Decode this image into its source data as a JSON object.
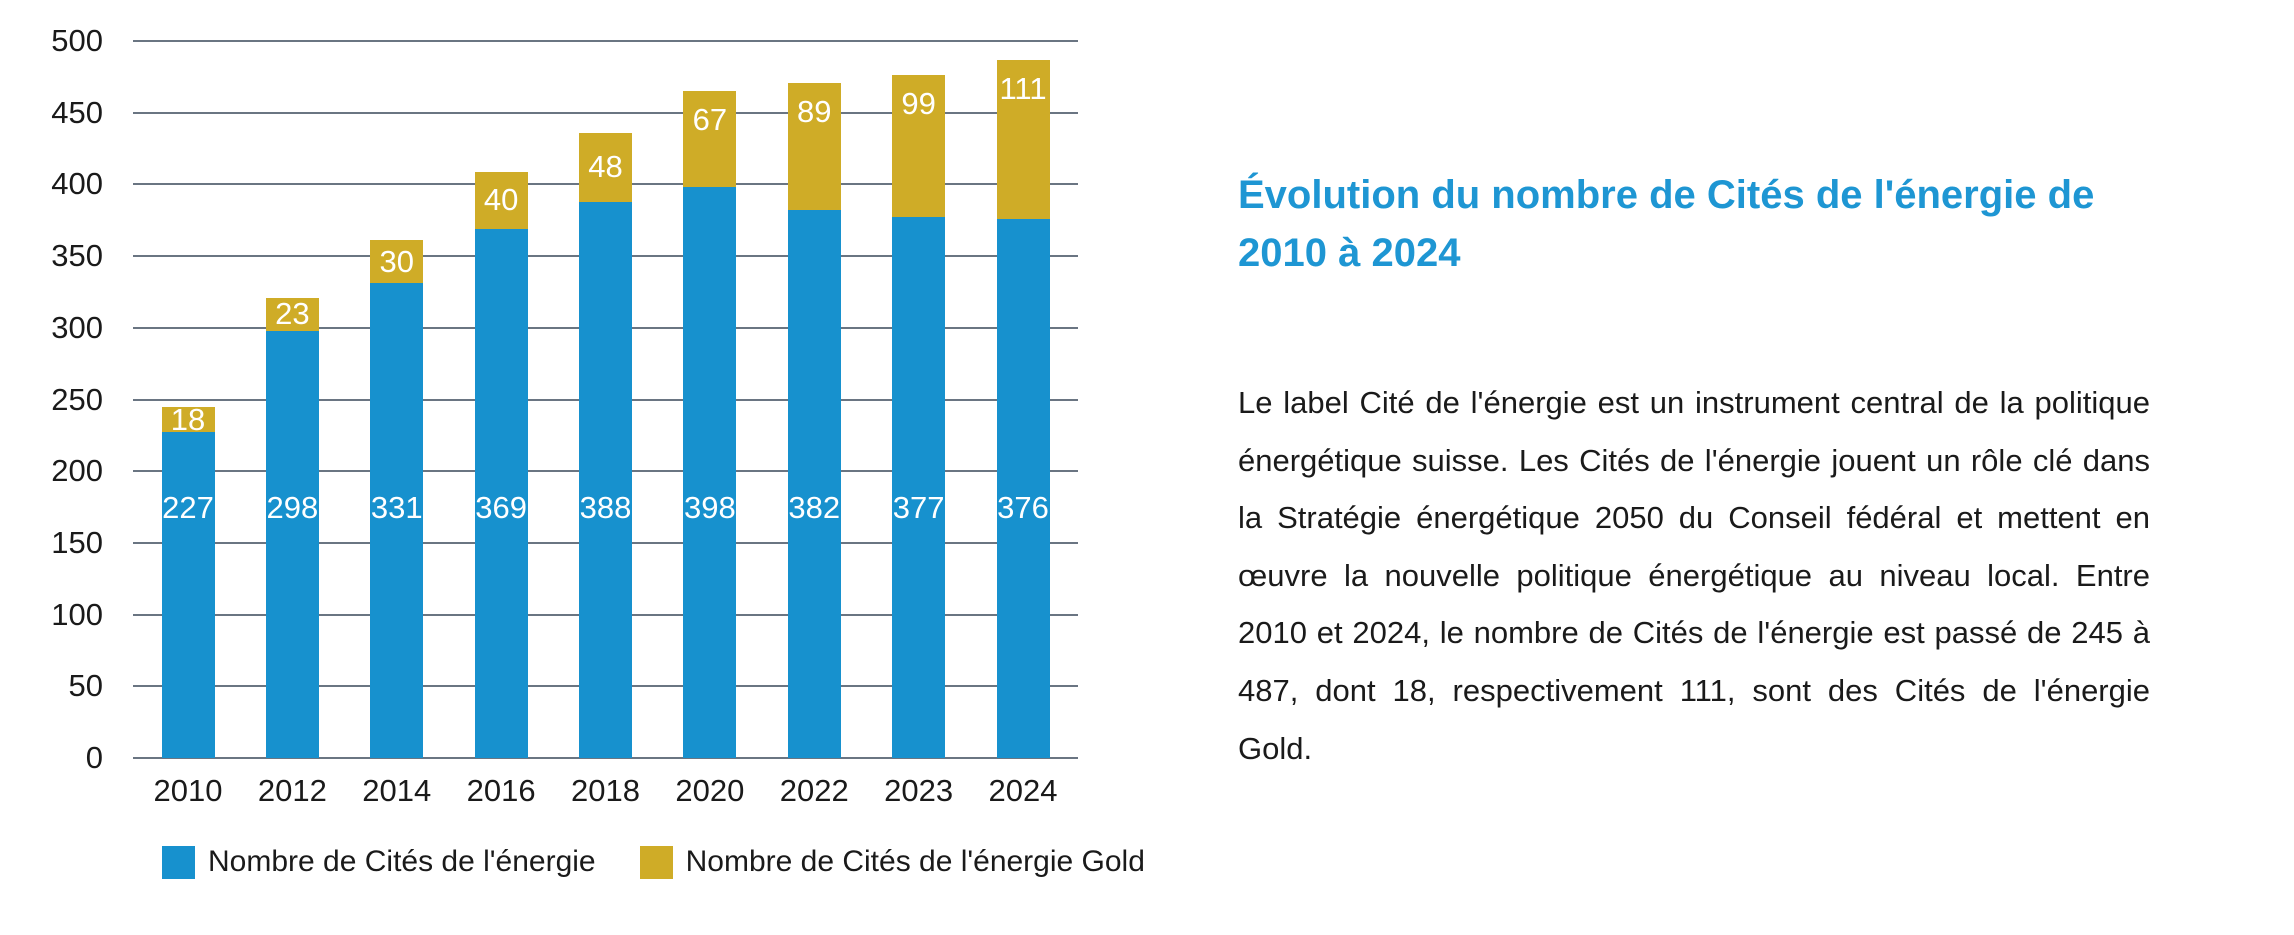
{
  "article": {
    "title": "Évolution du nombre de Cités de l'énergie de 2010 à 2024",
    "body": "Le label Cité de l'énergie est un instrument central de la politique énergétique suisse. Les Cités de l'énergie jouent un rôle clé dans la Stratégie énergétique 2050 du Conseil fédéral et mettent en œuvre la nouvelle politique énergétique au niveau local. Entre 2010 et 2024, le nombre de Cités de l'énergie est passé de 245 à 487, dont 18, respectivement 111, sont des Cités de l'énergie Gold."
  },
  "chart_data": {
    "type": "bar",
    "stacked": true,
    "categories": [
      "2010",
      "2012",
      "2014",
      "2016",
      "2018",
      "2020",
      "2022",
      "2023",
      "2024"
    ],
    "series": [
      {
        "name": "Nombre de Cités de l'énergie",
        "color": "#1791CE",
        "values": [
          227,
          298,
          331,
          369,
          388,
          398,
          382,
          377,
          376
        ]
      },
      {
        "name": "Nombre de Cités de l'énergie Gold",
        "color": "#CFAC27",
        "values": [
          18,
          23,
          30,
          40,
          48,
          67,
          89,
          99,
          111
        ]
      }
    ],
    "title": "",
    "xlabel": "",
    "ylabel": "",
    "ylim": [
      0,
      500
    ],
    "ytick_step": 50,
    "grid": true,
    "legend_position": "bottom",
    "value_labels": true
  },
  "colors": {
    "title_blue": "#1E96D3",
    "body_text": "#1A1A1A",
    "grid_line": "#6A7582",
    "background": "#FFFFFF"
  }
}
